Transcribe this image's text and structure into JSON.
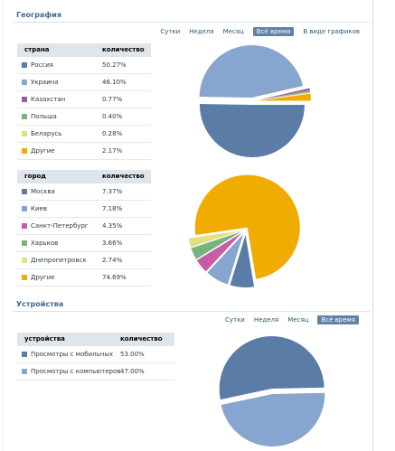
{
  "geography": {
    "title": "География",
    "filters": [
      "Сутки",
      "Неделя",
      "Месяц",
      "Всё время",
      "В виде графиков"
    ],
    "selected_filter": "Всё время",
    "country_table": {
      "headers": [
        "страна",
        "количество"
      ],
      "rows": [
        {
          "name": "Россия",
          "value": "50.27%",
          "color": "#5b7ca6"
        },
        {
          "name": "Украина",
          "value": "46.10%",
          "color": "#87a5cf"
        },
        {
          "name": "Казахстан",
          "value": "0.77%",
          "color": "#9a5f9a"
        },
        {
          "name": "Польша",
          "value": "0.40%",
          "color": "#77b47c"
        },
        {
          "name": "Беларусь",
          "value": "0.28%",
          "color": "#e6df82"
        },
        {
          "name": "Другие",
          "value": "2.17%",
          "color": "#f0ac00"
        }
      ]
    },
    "city_table": {
      "headers": [
        "город",
        "количество"
      ],
      "rows": [
        {
          "name": "Москва",
          "value": "7.37%",
          "color": "#5b7ca6"
        },
        {
          "name": "Киев",
          "value": "7.18%",
          "color": "#87a5cf"
        },
        {
          "name": "Санкт-Петербург",
          "value": "4.35%",
          "color": "#c85ba6"
        },
        {
          "name": "Харьков",
          "value": "3.66%",
          "color": "#77b47c"
        },
        {
          "name": "Днепропетровск",
          "value": "2.74%",
          "color": "#e6df82"
        },
        {
          "name": "Другие",
          "value": "74.69%",
          "color": "#f0ac00"
        }
      ]
    }
  },
  "devices": {
    "title": "Устройства",
    "filters": [
      "Сутки",
      "Неделя",
      "Месяц",
      "Всё время"
    ],
    "selected_filter": "Всё время",
    "table": {
      "headers": [
        "устройства",
        "количество"
      ],
      "rows": [
        {
          "name": "Просмотры с мобильных",
          "value": "53.00%",
          "color": "#5b7ca6"
        },
        {
          "name": "Просмотры с компьютеров",
          "value": "47.00%",
          "color": "#87a5cf"
        }
      ]
    }
  },
  "chart_data": [
    {
      "type": "pie",
      "categories": [
        "Россия",
        "Украина",
        "Казахстан",
        "Польша",
        "Беларусь",
        "Другие"
      ],
      "values": [
        50.27,
        46.1,
        0.77,
        0.4,
        0.28,
        2.17
      ],
      "colors": [
        "#5b7ca6",
        "#87a5cf",
        "#9a5f9a",
        "#77b47c",
        "#e6df82",
        "#f0ac00"
      ]
    },
    {
      "type": "pie",
      "categories": [
        "Москва",
        "Киев",
        "Санкт-Петербург",
        "Харьков",
        "Днепропетровск",
        "Другие"
      ],
      "values": [
        7.37,
        7.18,
        4.35,
        3.66,
        2.74,
        74.69
      ],
      "colors": [
        "#5b7ca6",
        "#87a5cf",
        "#c85ba6",
        "#77b47c",
        "#e6df82",
        "#f0ac00"
      ]
    },
    {
      "type": "pie",
      "categories": [
        "Просмотры с мобильных",
        "Просмотры с компьютеров"
      ],
      "values": [
        53.0,
        47.0
      ],
      "colors": [
        "#5b7ca6",
        "#87a5cf"
      ]
    }
  ]
}
